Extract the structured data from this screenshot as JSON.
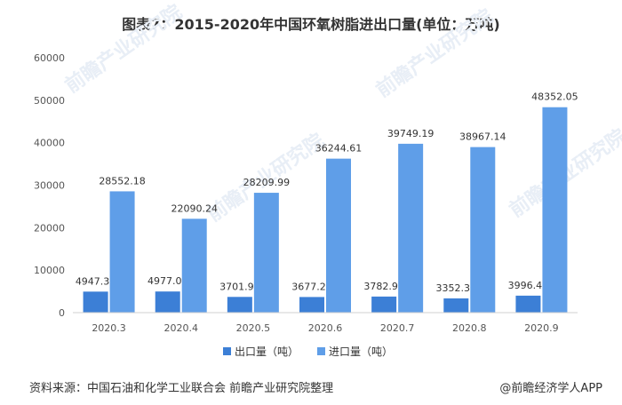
{
  "footer": {
    "source": "资料来源：中国石油和化学工业联合会 前瞻产业研究院整理",
    "brand": "@前瞻经济学人APP"
  },
  "watermark": "前瞻产业研究院",
  "colors": {
    "export": "#3c7fd6",
    "import": "#5f9ee8",
    "axis": "#d0d0d0",
    "text": "#555555"
  },
  "chart_data": {
    "type": "bar",
    "title": "图表7：2015-2020年中国环氧树脂进出口量(单位：万吨)",
    "categories": [
      "2020.3",
      "2020.4",
      "2020.5",
      "2020.6",
      "2020.7",
      "2020.8",
      "2020.9"
    ],
    "series": [
      {
        "name": "出口量（吨）",
        "values": [
          4947.39,
          4977.02,
          3701.91,
          3677.29,
          3782.92,
          3352.39,
          3996.41
        ]
      },
      {
        "name": "进口量（吨）",
        "values": [
          28552.18,
          22090.24,
          28209.99,
          36244.61,
          39749.19,
          38967.14,
          48352.05
        ]
      }
    ],
    "value_labels": [
      [
        "4947.39",
        "4977.02",
        "3701.91",
        "3677.29",
        "3782.92",
        "3352.39",
        "3996.41"
      ],
      [
        "28552.18",
        "22090.24",
        "28209.99",
        "36244.61",
        "39749.19",
        "38967.14",
        "48352.05"
      ]
    ],
    "ylim": [
      0,
      60000
    ],
    "yticks": [
      "0",
      "10000",
      "20000",
      "30000",
      "40000",
      "50000",
      "60000"
    ],
    "legend_position": "bottom",
    "grid": false
  }
}
